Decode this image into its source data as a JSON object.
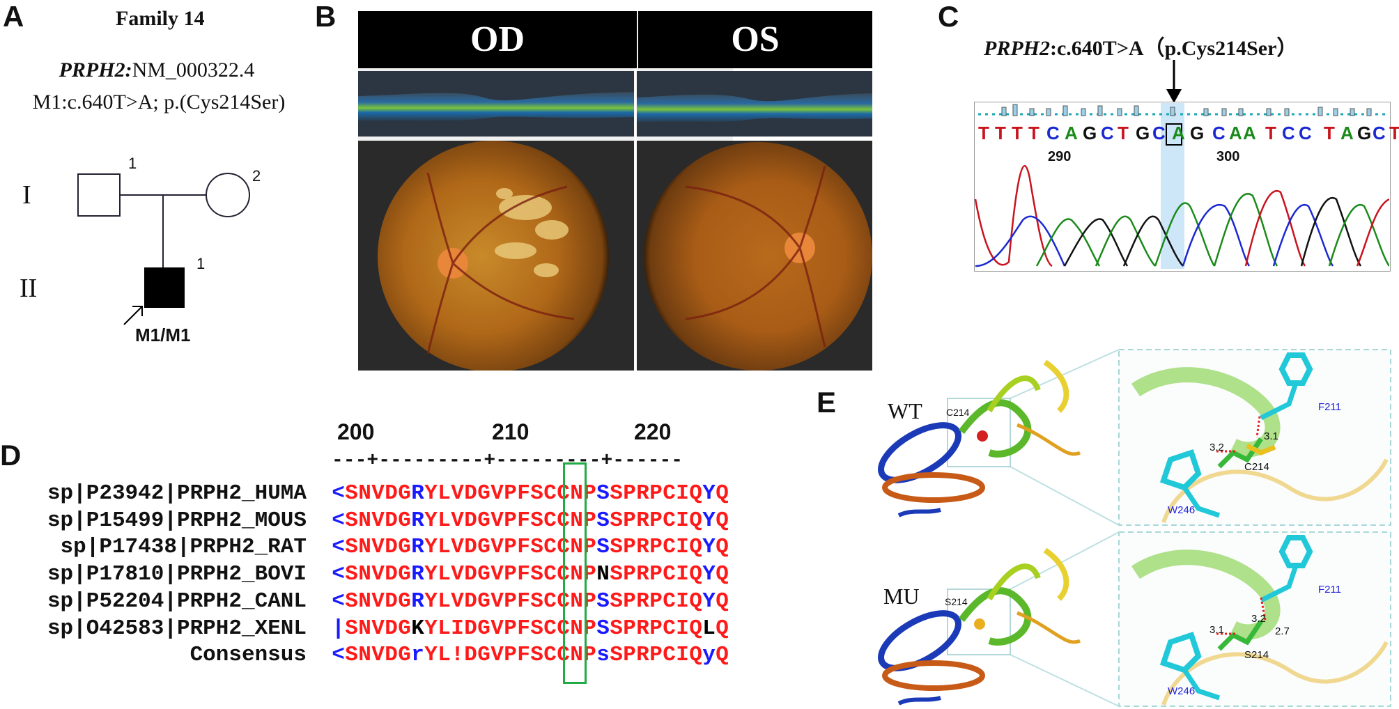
{
  "panels": {
    "A": {
      "label": "A",
      "title": "Family 14",
      "gene_italic": "PRPH2:",
      "transcript": "NM_000322.4",
      "mutation": "M1:c.640T>A; p.(Cys214Ser)",
      "generation_I": "I",
      "generation_II": "II",
      "ind_I1": "1",
      "ind_I2": "2",
      "ind_II1": "1",
      "genotype": "M1/M1"
    },
    "B": {
      "label": "B",
      "od": "OD",
      "os": "OS"
    },
    "C": {
      "label": "C",
      "gene_italic": "PRPH2",
      "variant": ":c.640T>A（p.Cys214Ser）",
      "bases": [
        "T",
        "T",
        "T",
        "T",
        "C",
        "A",
        "G",
        "C",
        "T",
        "G",
        "C",
        "A",
        "G",
        "C",
        "A",
        "A",
        "T",
        "C",
        "C",
        "T",
        "A",
        "G",
        "C",
        "T"
      ],
      "pos_290": "290",
      "pos_300": "300"
    },
    "D": {
      "label": "D",
      "ruler": [
        "200",
        "210",
        "220"
      ],
      "ruler_line": "---+---------+---------+------",
      "rows": [
        {
          "name": "sp|P23942|PRPH2_HUMA",
          "seq": "<SNVDGRYLVDGVPFSCCNPSSPRPCIQYQ"
        },
        {
          "name": "sp|P15499|PRPH2_MOUS",
          "seq": "<SNVDGRYLVDGVPFSCCNPSSPRPCIQYQ"
        },
        {
          "name": "sp|P17438|PRPH2_RAT",
          "seq": "<SNVDGRYLVDGVPFSCCNPSSPRPCIQYQ"
        },
        {
          "name": "sp|P17810|PRPH2_BOVI",
          "seq": "<SNVDGRYLVDGVPFSCCNPNSPRPCIQYQ"
        },
        {
          "name": "sp|P52204|PRPH2_CANL",
          "seq": "<SNVDGRYLVDGVPFSCCNPSSPRPCIQYQ"
        },
        {
          "name": "sp|O42583|PRPH2_XENL",
          "seq": "|SNVDGKYLIDGVPFSCCNPSSPRPCIQLQ"
        },
        {
          "name": "Consensus",
          "seq": "<SNVDGrYL!DGVPFSCCNPsSPRPCIQyQ"
        }
      ]
    },
    "E": {
      "label": "E",
      "wt": "WT",
      "mu": "MU",
      "wt_res": "C214",
      "mu_res": "S214",
      "wt_zoom": {
        "f": "F211",
        "c": "C214",
        "w": "W246",
        "d1": "3.2",
        "d2": "3.1"
      },
      "mu_zoom": {
        "f": "F211",
        "s": "S214",
        "w": "W246",
        "d1": "3.1",
        "d2": "3.2",
        "d3": "2.7"
      }
    }
  },
  "colors": {
    "seq_red": "#ff1a1a",
    "seq_blue": "#1a1aff",
    "seq_black": "#000000",
    "highlight_box": "#22aa44",
    "trace_red": "#c8141e",
    "trace_green": "#1a8a1a",
    "trace_blue": "#1a2ad0",
    "trace_black": "#111111"
  }
}
